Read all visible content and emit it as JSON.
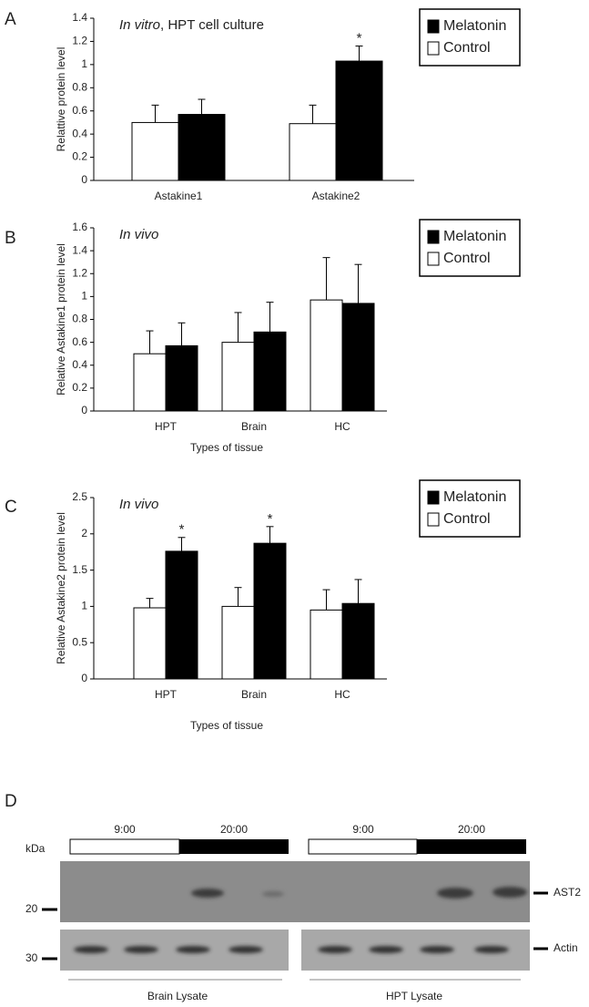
{
  "chart_data": [
    {
      "type": "bar",
      "panel": "A",
      "annotation": [
        "In vitro",
        ", HPT cell culture"
      ],
      "ylabel": "Relattive protein level",
      "categories": [
        "Astakine1",
        "Astakine2"
      ],
      "series": [
        {
          "name": "Melatonin",
          "color": "#000000",
          "values": [
            0.57,
            1.03
          ],
          "errors": [
            0.13,
            0.13
          ],
          "significance": [
            null,
            "*"
          ]
        },
        {
          "name": "Control",
          "color": "#ffffff",
          "values": [
            0.5,
            0.49
          ],
          "errors": [
            0.15,
            0.16
          ],
          "significance": [
            null,
            null
          ]
        }
      ],
      "ylim": [
        0,
        1.4
      ],
      "yticks": [
        0,
        0.2,
        0.4,
        0.6,
        0.8,
        1,
        1.2,
        1.4
      ]
    },
    {
      "type": "bar",
      "panel": "B",
      "annotation": [
        "In vivo"
      ],
      "ylabel": "Relative Astakine1 protein level",
      "xlabel": "Types of tissue",
      "categories": [
        "HPT",
        "Brain",
        "HC"
      ],
      "series": [
        {
          "name": "Melatonin",
          "color": "#000000",
          "values": [
            0.57,
            0.69,
            0.94
          ],
          "errors": [
            0.2,
            0.26,
            0.34
          ],
          "significance": [
            null,
            null,
            null
          ]
        },
        {
          "name": "Control",
          "color": "#ffffff",
          "values": [
            0.5,
            0.6,
            0.97
          ],
          "errors": [
            0.2,
            0.26,
            0.37
          ],
          "significance": [
            null,
            null,
            null
          ]
        }
      ],
      "ylim": [
        0,
        1.6
      ],
      "yticks": [
        0,
        0.2,
        0.4,
        0.6,
        0.8,
        1,
        1.2,
        1.4,
        1.6
      ]
    },
    {
      "type": "bar",
      "panel": "C",
      "annotation": [
        "In vivo"
      ],
      "ylabel": "Relative Astakine2 protein level",
      "xlabel": "Types of tissue",
      "categories": [
        "HPT",
        "Brain",
        "HC"
      ],
      "series": [
        {
          "name": "Melatonin",
          "color": "#000000",
          "values": [
            1.76,
            1.87,
            1.04
          ],
          "errors": [
            0.19,
            0.23,
            0.33
          ],
          "significance": [
            "*",
            "*",
            null
          ]
        },
        {
          "name": "Control",
          "color": "#ffffff",
          "values": [
            0.98,
            1.0,
            0.95
          ],
          "errors": [
            0.13,
            0.26,
            0.28
          ],
          "significance": [
            null,
            null,
            null
          ]
        }
      ],
      "ylim": [
        0,
        2.5
      ],
      "yticks": [
        0,
        0.5,
        1,
        1.5,
        2,
        2.5
      ]
    }
  ],
  "blot": {
    "panel": "D",
    "unit": "kDa",
    "times": [
      "9:00",
      "20:00",
      "9:00",
      "20:00"
    ],
    "markers": [
      "20",
      "30"
    ],
    "bands": [
      "AST2",
      "Actin"
    ],
    "lysates": [
      "Brain Lysate",
      "HPT Lysate"
    ]
  }
}
